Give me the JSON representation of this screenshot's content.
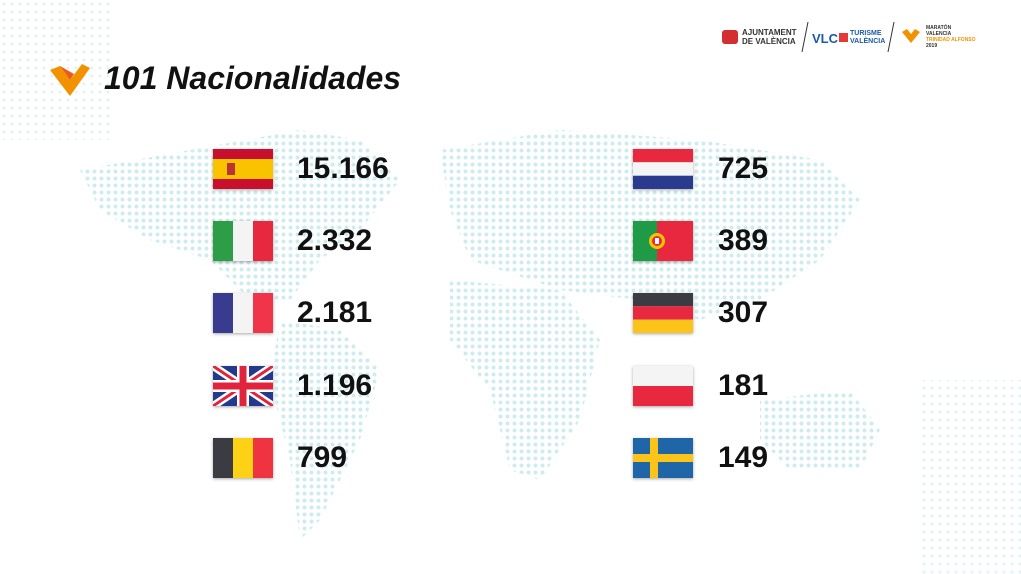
{
  "header": {
    "title": "101 Nacionalidades",
    "logos": {
      "ajuntament": [
        "AJUNTAMENT",
        "DE VALÈNCIA"
      ],
      "vlc": "VLC",
      "turisme": [
        "TURISME",
        "VALÈNCIA"
      ],
      "maraton": [
        "MARATÓN",
        "VALENCIA",
        "TRINIDAD ALFONSO",
        "2019"
      ]
    }
  },
  "left_column": [
    "15.166",
    "2.332",
    "2.181",
    "1.196",
    "799"
  ],
  "right_column": [
    "725",
    "389",
    "307",
    "181",
    "149"
  ]
}
